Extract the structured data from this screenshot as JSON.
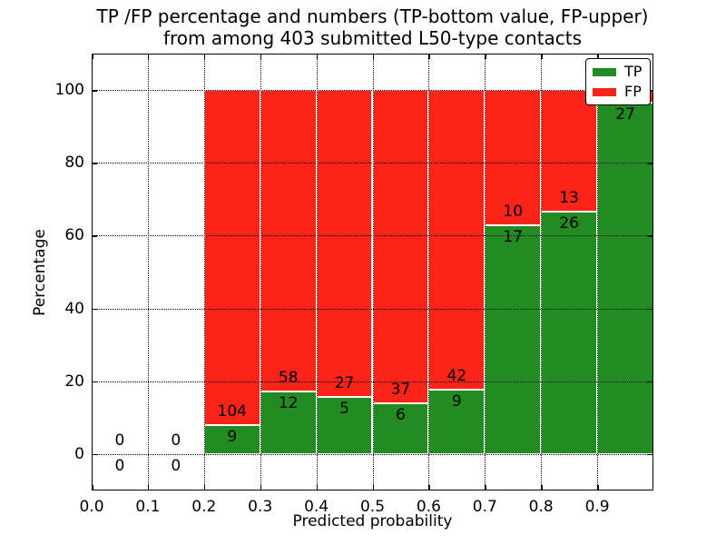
{
  "title": {
    "line1": "TP /FP percentage and numbers (TP-bottom value, FP-upper)",
    "line2": "from among 403 submitted L50-type contacts"
  },
  "axes": {
    "xlabel": "Predicted probability",
    "ylabel": "Percentage"
  },
  "legend": {
    "items": [
      {
        "label": "TP",
        "color": "#228b22"
      },
      {
        "label": "FP",
        "color": "#fb2419"
      }
    ]
  },
  "chart_data": {
    "type": "bar",
    "stacked": true,
    "title": "TP /FP percentage and numbers (TP-bottom value, FP-upper) from among 403 submitted L50-type contacts",
    "xlabel": "Predicted probability",
    "ylabel": "Percentage",
    "total_contacts": 403,
    "xlim": [
      0.0,
      1.0
    ],
    "ylim": [
      -10,
      110
    ],
    "grid": "dotted",
    "legend_position": "upper right",
    "colors": {
      "tp": "#228b22",
      "fp": "#fb2419"
    },
    "x_ticks": {
      "values": [
        0.0,
        0.1,
        0.2,
        0.3,
        0.4,
        0.5,
        0.6,
        0.7,
        0.8,
        0.9
      ],
      "labels": [
        "0.0",
        "0.1",
        "0.2",
        "0.3",
        "0.4",
        "0.5",
        "0.6",
        "0.7",
        "0.8",
        "0.9"
      ]
    },
    "y_ticks": {
      "values": [
        0,
        20,
        40,
        60,
        80,
        100
      ],
      "labels": [
        "0",
        "20",
        "40",
        "60",
        "80",
        "100"
      ]
    },
    "x_gridlines": [
      0.1,
      0.2,
      0.3,
      0.4,
      0.5,
      0.6,
      0.7,
      0.8,
      0.9
    ],
    "bins": [
      {
        "x0": 0.0,
        "x1": 0.1,
        "tp": 0,
        "fp": 0,
        "draw_bar": false,
        "tp_label": "0",
        "fp_label": "0"
      },
      {
        "x0": 0.1,
        "x1": 0.2,
        "tp": 0,
        "fp": 0,
        "draw_bar": false,
        "tp_label": "0",
        "fp_label": "0"
      },
      {
        "x0": 0.2,
        "x1": 0.3,
        "tp": 9,
        "fp": 104,
        "draw_bar": true,
        "tp_label": "9",
        "fp_label": "104"
      },
      {
        "x0": 0.3,
        "x1": 0.4,
        "tp": 12,
        "fp": 58,
        "draw_bar": true,
        "tp_label": "12",
        "fp_label": "58"
      },
      {
        "x0": 0.4,
        "x1": 0.5,
        "tp": 5,
        "fp": 27,
        "draw_bar": true,
        "tp_label": "5",
        "fp_label": "27"
      },
      {
        "x0": 0.5,
        "x1": 0.6,
        "tp": 6,
        "fp": 37,
        "draw_bar": true,
        "tp_label": "6",
        "fp_label": "37"
      },
      {
        "x0": 0.6,
        "x1": 0.7,
        "tp": 9,
        "fp": 42,
        "draw_bar": true,
        "tp_label": "9",
        "fp_label": "42"
      },
      {
        "x0": 0.7,
        "x1": 0.8,
        "tp": 17,
        "fp": 10,
        "draw_bar": true,
        "tp_label": "17",
        "fp_label": "10"
      },
      {
        "x0": 0.8,
        "x1": 0.9,
        "tp": 26,
        "fp": 13,
        "draw_bar": true,
        "tp_label": "26",
        "fp_label": "13"
      },
      {
        "x0": 0.9,
        "x1": 1.0,
        "tp": 27,
        "fp": 1,
        "draw_bar": true,
        "tp_label": "27",
        "fp_label": ""
      }
    ]
  }
}
